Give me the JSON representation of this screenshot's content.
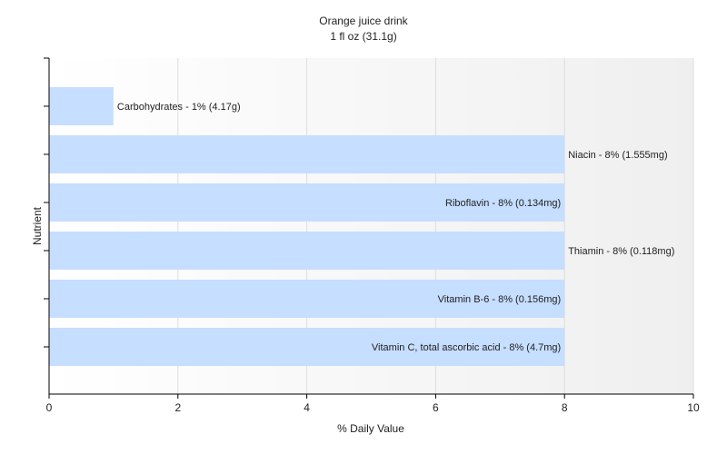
{
  "chart_data": {
    "type": "bar",
    "orientation": "horizontal",
    "title": "Orange juice drink",
    "subtitle": "1 fl oz (31.1g)",
    "xlabel": "% Daily Value",
    "ylabel": "Nutrient",
    "xlim": [
      0,
      10
    ],
    "xticks": [
      "0",
      "2",
      "4",
      "6",
      "8",
      "10"
    ],
    "grid": true,
    "bar_color": "#c6deff",
    "categories": [
      "Carbohydrates",
      "Niacin",
      "Riboflavin",
      "Thiamin",
      "Vitamin B-6",
      "Vitamin C, total ascorbic acid"
    ],
    "values": [
      1,
      8,
      8,
      8,
      8,
      8
    ],
    "labels": [
      "Carbohydrates - 1% (4.17g)",
      "Niacin - 8% (1.555mg)",
      "Riboflavin - 8% (0.134mg)",
      "Thiamin - 8% (0.118mg)",
      "Vitamin B-6 - 8% (0.156mg)",
      "Vitamin C, total ascorbic acid - 8% (4.7mg)"
    ]
  }
}
